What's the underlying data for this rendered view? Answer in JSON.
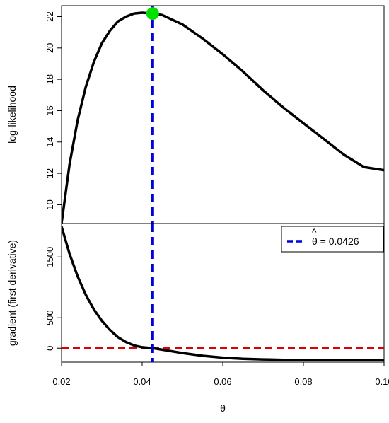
{
  "chart_data": [
    {
      "type": "line",
      "panel": "top",
      "ylabel": "log-likelihood",
      "xlim": [
        0.02,
        0.1
      ],
      "ylim": [
        8.8,
        22.7
      ],
      "yticks": [
        10,
        12,
        14,
        16,
        18,
        20,
        22
      ],
      "series": [
        {
          "color": "#000000",
          "x": [
            0.02,
            0.022,
            0.024,
            0.026,
            0.028,
            0.03,
            0.032,
            0.034,
            0.036,
            0.038,
            0.04,
            0.0426,
            0.045,
            0.05,
            0.055,
            0.06,
            0.065,
            0.07,
            0.075,
            0.08,
            0.085,
            0.09,
            0.095,
            0.1
          ],
          "y": [
            8.8,
            12.6,
            15.4,
            17.5,
            19.1,
            20.3,
            21.1,
            21.7,
            22.0,
            22.2,
            22.25,
            22.2,
            22.1,
            21.5,
            20.6,
            19.6,
            18.5,
            17.3,
            16.2,
            15.2,
            14.2,
            13.2,
            12.4,
            12.2
          ]
        }
      ],
      "marker": {
        "x": 0.0426,
        "y": 22.2,
        "color": "#00e000"
      },
      "vline": {
        "x": 0.0426,
        "color": "#0000dd",
        "style": "dashed"
      }
    },
    {
      "type": "line",
      "panel": "bottom",
      "xlabel": "θ",
      "ylabel": "gradient (first derivative)",
      "xlim": [
        0.02,
        0.1
      ],
      "ylim": [
        -230,
        2050
      ],
      "xticks": [
        0.02,
        0.04,
        0.06,
        0.08,
        0.1
      ],
      "xtick_labels": [
        "0.02",
        "0.04",
        "0.06",
        "0.08",
        "0.10"
      ],
      "yticks": [
        0,
        500,
        1500
      ],
      "series": [
        {
          "color": "#000000",
          "x": [
            0.02,
            0.022,
            0.024,
            0.026,
            0.028,
            0.03,
            0.032,
            0.034,
            0.036,
            0.038,
            0.04,
            0.0426,
            0.045,
            0.05,
            0.055,
            0.06,
            0.065,
            0.07,
            0.075,
            0.08,
            0.085,
            0.09,
            0.095,
            0.1
          ],
          "y": [
            2000,
            1550,
            1180,
            880,
            640,
            450,
            300,
            180,
            100,
            45,
            15,
            0,
            -25,
            -80,
            -125,
            -155,
            -175,
            -185,
            -192,
            -196,
            -198,
            -199,
            -199,
            -199
          ]
        }
      ],
      "hline": {
        "y": 0,
        "color": "#dd0000",
        "style": "dashed"
      },
      "vline": {
        "x": 0.0426,
        "color": "#0000dd",
        "style": "dashed"
      },
      "legend": {
        "placement": "top-right",
        "label": "θ = 0.0426",
        "hat_symbol": "^",
        "color": "#0000dd",
        "style": "dashed"
      }
    }
  ]
}
